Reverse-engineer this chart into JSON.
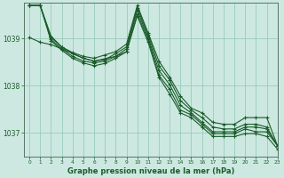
{
  "background_color": "#cce8e0",
  "grid_color": "#99ccbb",
  "line_color": "#1a5c2a",
  "text_color": "#1a5c2a",
  "xlabel": "Graphe pression niveau de la mer (hPa)",
  "ylim": [
    1036.5,
    1039.75
  ],
  "xlim": [
    -0.5,
    23
  ],
  "yticks": [
    1037,
    1038,
    1039
  ],
  "xticks": [
    0,
    1,
    2,
    3,
    4,
    5,
    6,
    7,
    8,
    9,
    10,
    11,
    12,
    13,
    14,
    15,
    16,
    17,
    18,
    19,
    20,
    21,
    22,
    23
  ],
  "series": [
    [
      1039.7,
      1039.7,
      1039.05,
      1038.82,
      1038.7,
      1038.62,
      1038.58,
      1038.65,
      1038.72,
      1038.88,
      1039.7,
      1039.12,
      1038.52,
      1038.18,
      1037.78,
      1037.52,
      1037.42,
      1037.22,
      1037.18,
      1037.18,
      1037.32,
      1037.32,
      1037.32,
      1036.72
    ],
    [
      1039.7,
      1039.7,
      1039.02,
      1038.82,
      1038.68,
      1038.58,
      1038.52,
      1038.55,
      1038.68,
      1038.82,
      1039.65,
      1039.08,
      1038.42,
      1038.12,
      1037.68,
      1037.48,
      1037.32,
      1037.12,
      1037.08,
      1037.08,
      1037.18,
      1037.18,
      1037.12,
      1036.72
    ],
    [
      1039.7,
      1039.7,
      1038.98,
      1038.78,
      1038.62,
      1038.52,
      1038.48,
      1038.52,
      1038.62,
      1038.78,
      1039.6,
      1039.02,
      1038.32,
      1038.02,
      1037.58,
      1037.42,
      1037.22,
      1037.02,
      1037.02,
      1037.02,
      1037.12,
      1037.12,
      1037.08,
      1036.72
    ],
    [
      1039.7,
      1039.7,
      1038.95,
      1038.75,
      1038.58,
      1038.48,
      1038.42,
      1038.47,
      1038.58,
      1038.72,
      1039.52,
      1038.98,
      1038.22,
      1037.92,
      1037.48,
      1037.38,
      1037.18,
      1036.98,
      1036.98,
      1036.98,
      1037.08,
      1037.02,
      1037.02,
      1036.72
    ],
    [
      1039.02,
      1038.92,
      1038.87,
      1038.78,
      1038.68,
      1038.58,
      1038.52,
      1038.57,
      1038.62,
      1038.72,
      1039.48,
      1038.92,
      1038.18,
      1037.82,
      1037.42,
      1037.32,
      1037.12,
      1036.92,
      1036.92,
      1036.92,
      1036.98,
      1036.98,
      1036.92,
      1036.65
    ]
  ]
}
